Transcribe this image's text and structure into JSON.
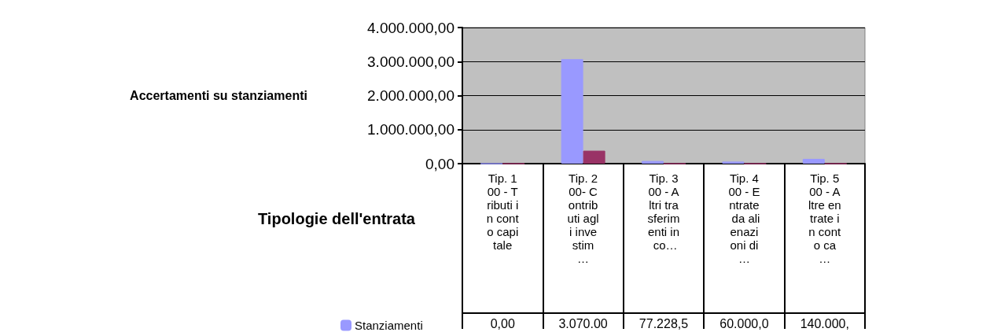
{
  "chart_data": {
    "type": "bar",
    "ylabel": "Accertamenti su stanziamenti",
    "xlabel": "Tipologie dell'entrata",
    "categories": [
      "Tip. 100 - Tributi in conto capitale",
      "Tip. 200- Contributi agli investim…",
      "Tip. 300 - Altri trasferimenti in co…",
      "Tip. 400 - Entrate da alienazioni di…",
      "Tip. 500 - Altre entrate in conto ca…"
    ],
    "series": [
      {
        "name": "Stanziamenti",
        "color": "#9999ff",
        "values": [
          0,
          3070000,
          77228.5,
          60000,
          140000
        ],
        "value_labels": [
          "0,00",
          "3.070.00",
          "77.228,5",
          "60.000,0",
          "140.000,"
        ]
      },
      {
        "color": "#993366",
        "values": [
          0,
          380000,
          0,
          0,
          0
        ]
      }
    ],
    "ylim": [
      0,
      4000000
    ],
    "yticks": [
      {
        "value": 0,
        "label": "0,00"
      },
      {
        "value": 1000000,
        "label": "1.000.000,00"
      },
      {
        "value": 2000000,
        "label": "2.000.000,00"
      },
      {
        "value": 3000000,
        "label": "3.000.000,00"
      },
      {
        "value": 4000000,
        "label": "4.000.000,00"
      }
    ],
    "grid": true,
    "legend": "bottom left"
  }
}
